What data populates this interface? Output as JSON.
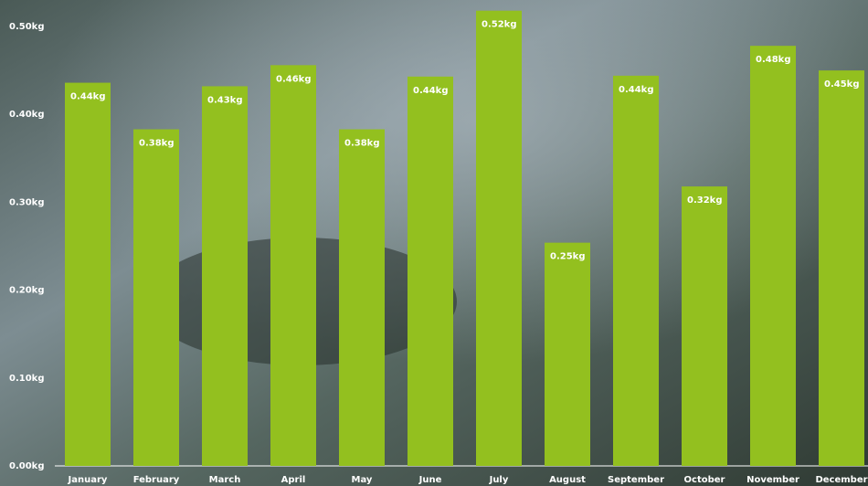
{
  "chart_data": {
    "type": "bar",
    "categories": [
      "January",
      "February",
      "March",
      "April",
      "May",
      "June",
      "July",
      "August",
      "September",
      "October",
      "November",
      "December"
    ],
    "values": [
      0.436,
      0.383,
      0.432,
      0.456,
      0.383,
      0.443,
      0.518,
      0.254,
      0.444,
      0.318,
      0.478,
      0.45
    ],
    "value_labels": [
      "0.44kg",
      "0.38kg",
      "0.43kg",
      "0.46kg",
      "0.38kg",
      "0.44kg",
      "0.52kg",
      "0.25kg",
      "0.44kg",
      "0.32kg",
      "0.48kg",
      "0.45kg"
    ],
    "color": "#93c01f",
    "ylim": [
      0,
      0.5
    ],
    "yticks": [
      {
        "value": 0,
        "label": "0.00kg"
      },
      {
        "value": 0.1,
        "label": "0.10kg"
      },
      {
        "value": 0.2,
        "label": "0.20kg"
      },
      {
        "value": 0.3,
        "label": "0.30kg"
      },
      {
        "value": 0.4,
        "label": "0.40kg"
      },
      {
        "value": 0.5,
        "label": "0.50kg"
      }
    ],
    "grid": false
  }
}
